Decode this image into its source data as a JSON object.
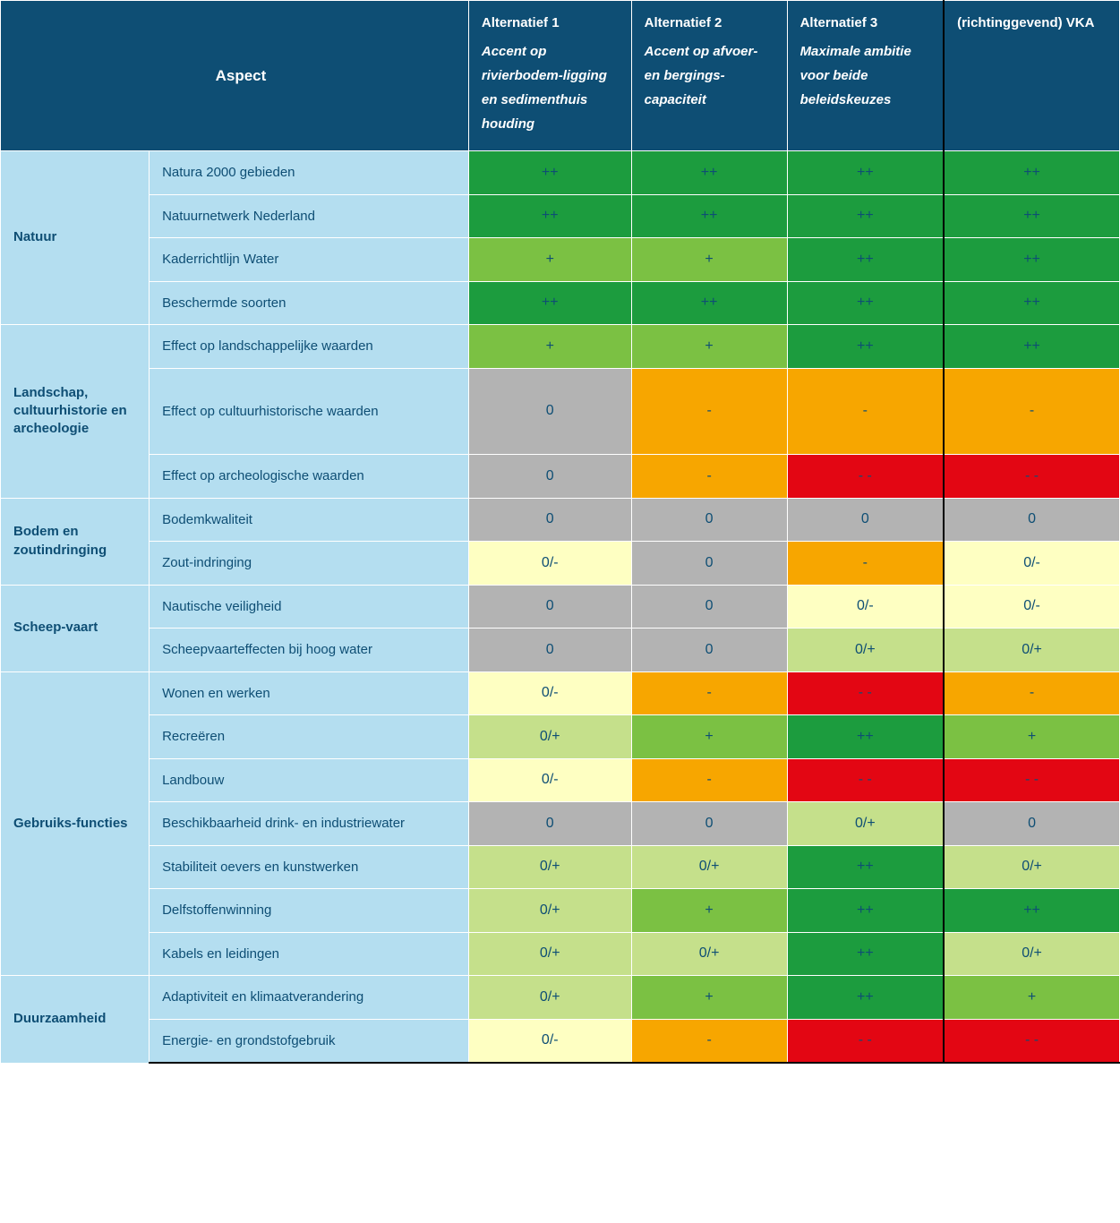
{
  "colors": {
    "header_bg": "#0e4e74",
    "header_text": "#ffffff",
    "cat_bg": "#b4def0",
    "cat_text": "#0e4e74",
    "score_text": "#0e4e74",
    "double_plus": "#1c9c3e",
    "single_plus": "#7bc143",
    "zero_plus_mix": "#c5e08b",
    "zero_gray": "#b3b3b3",
    "zero_minus_mix": "#feffc2",
    "single_minus": "#f7a600",
    "double_minus": "#e30613"
  },
  "header": {
    "aspect_label": "Aspect",
    "alt1_title": "Alternatief 1",
    "alt1_sub": "Accent op rivierbodem-ligging en sedimenthuis houding",
    "alt2_title": "Alternatief 2",
    "alt2_sub": "Accent op afvoer- en bergings-capaciteit",
    "alt3_title": "Alternatief 3",
    "alt3_sub": "Maximale ambitie voor beide beleidskeuzes",
    "vka_title": "(richtinggevend) VKA"
  },
  "score_labels": {
    "pp": "++",
    "p": "+",
    "zp": "0/+",
    "z": "0",
    "zm": "0/-",
    "m": "-",
    "mm": "- -"
  },
  "categories": [
    {
      "name": "Natuur",
      "rows": [
        {
          "label": "Natura 2000 gebieden",
          "scores": [
            "pp",
            "pp",
            "pp",
            "pp"
          ]
        },
        {
          "label": "Natuurnetwerk Nederland",
          "scores": [
            "pp",
            "pp",
            "pp",
            "pp"
          ]
        },
        {
          "label": "Kaderrichtlijn Water",
          "scores": [
            "p",
            "p",
            "pp",
            "pp"
          ]
        },
        {
          "label": "Beschermde soorten",
          "scores": [
            "pp",
            "pp",
            "pp",
            "pp"
          ]
        }
      ]
    },
    {
      "name": "Landschap, cultuurhistorie en archeologie",
      "rows": [
        {
          "label": "Effect op landschappelijke waarden",
          "scores": [
            "p",
            "p",
            "pp",
            "pp"
          ]
        },
        {
          "label": "Effect op cultuurhistorische waarden",
          "scores": [
            "z",
            "m",
            "m",
            "m"
          ],
          "tall": true
        },
        {
          "label": "Effect op archeologische waarden",
          "scores": [
            "z",
            "m",
            "mm",
            "mm"
          ]
        }
      ]
    },
    {
      "name": "Bodem en zoutindringing",
      "rows": [
        {
          "label": "Bodemkwaliteit",
          "scores": [
            "z",
            "z",
            "z",
            "z"
          ]
        },
        {
          "label": "Zout-indringing",
          "scores": [
            "zm",
            "z",
            "m",
            "zm"
          ]
        }
      ]
    },
    {
      "name": "Scheep-vaart",
      "rows": [
        {
          "label": "Nautische veiligheid",
          "scores": [
            "z",
            "z",
            "zm",
            "zm"
          ]
        },
        {
          "label": "Scheepvaarteffecten bij hoog water",
          "scores": [
            "z",
            "z",
            "zp",
            "zp"
          ]
        }
      ]
    },
    {
      "name": "Gebruiks-functies",
      "rows": [
        {
          "label": "Wonen en werken",
          "scores": [
            "zm",
            "m",
            "mm",
            "m"
          ]
        },
        {
          "label": "Recreëren",
          "scores": [
            "zp",
            "p",
            "pp",
            "p"
          ]
        },
        {
          "label": "Landbouw",
          "scores": [
            "zm",
            "m",
            "mm",
            "mm"
          ]
        },
        {
          "label": "Beschikbaarheid drink- en industriewater",
          "scores": [
            "z",
            "z",
            "zp",
            "z"
          ]
        },
        {
          "label": "Stabiliteit oevers en kunstwerken",
          "scores": [
            "zp",
            "zp",
            "pp",
            "zp"
          ]
        },
        {
          "label": "Delfstoffenwinning",
          "scores": [
            "zp",
            "p",
            "pp",
            "pp"
          ]
        },
        {
          "label": "Kabels en leidingen",
          "scores": [
            "zp",
            "zp",
            "pp",
            "zp"
          ]
        }
      ]
    },
    {
      "name": "Duurzaamheid",
      "rows": [
        {
          "label": "Adaptiviteit en klimaatverandering",
          "scores": [
            "zp",
            "p",
            "pp",
            "p"
          ]
        },
        {
          "label": "Energie- en grondstofgebruik",
          "scores": [
            "zm",
            "m",
            "mm",
            "mm"
          ]
        }
      ]
    }
  ]
}
